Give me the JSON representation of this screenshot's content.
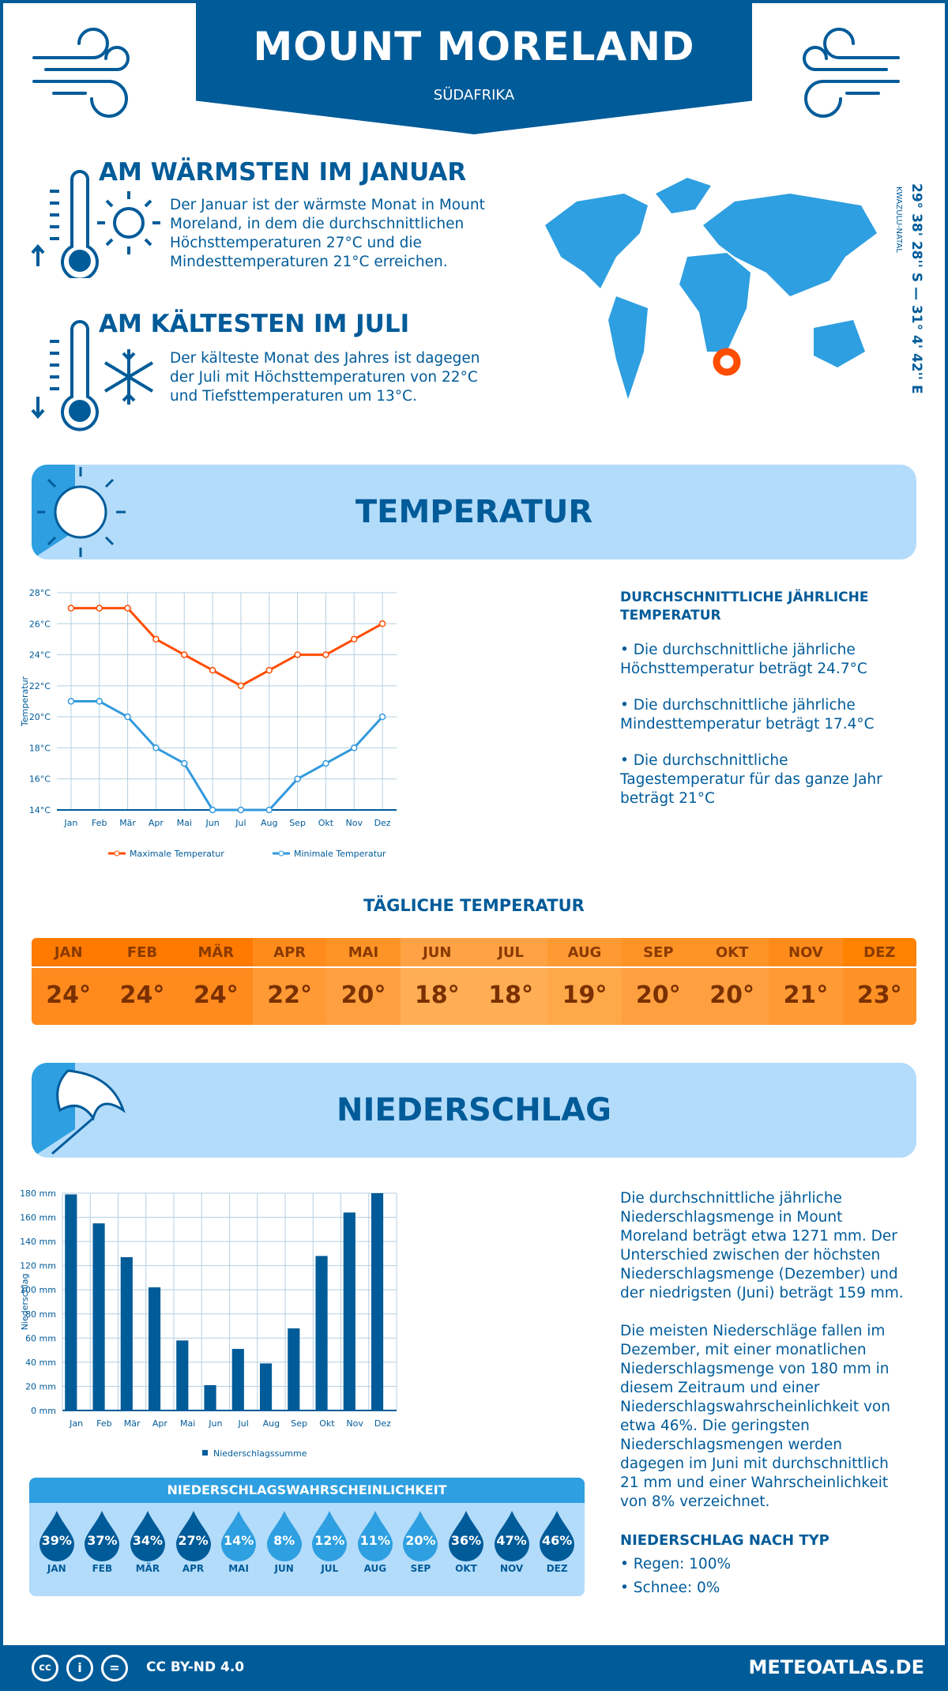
{
  "header": {
    "title": "MOUNT MORELAND",
    "subtitle": "SÜDAFRIKA"
  },
  "warm": {
    "title": "AM WÄRMSTEN IM JANUAR",
    "text": "Der Januar ist der wärmste Monat in Mount Moreland, in dem die durchschnittlichen Höchsttemperaturen 27°C und die Mindesttemperaturen 21°C erreichen."
  },
  "cold": {
    "title": "AM KÄLTESTEN IM JULI",
    "text": "Der kälteste Monat des Jahres ist dagegen der Juli mit Höchsttemperaturen von 22°C und Tiefsttemperaturen um 13°C."
  },
  "map": {
    "coords": "29° 38' 28'' S — 31° 4' 42'' E",
    "region": "KWAZULU-NATAL"
  },
  "temp_section": {
    "title": "TEMPERATUR",
    "side_title": "DURCHSCHNITTLICHE JÄHRLICHE TEMPERATUR",
    "bullets": [
      "• Die durchschnittliche jährliche Höchsttemperatur beträgt 24.7°C",
      "• Die durchschnittliche jährliche Mindesttemperatur beträgt 17.4°C",
      "• Die durchschnittliche Tagestemperatur für das ganze Jahr beträgt 21°C"
    ]
  },
  "chart_data": [
    {
      "type": "line",
      "ylabel": "Temperatur",
      "ylim": [
        14,
        28
      ],
      "yticks": [
        "14°C",
        "16°C",
        "18°C",
        "20°C",
        "22°C",
        "24°C",
        "26°C",
        "28°C"
      ],
      "categories": [
        "Jan",
        "Feb",
        "Mär",
        "Apr",
        "Mai",
        "Jun",
        "Jul",
        "Aug",
        "Sep",
        "Okt",
        "Nov",
        "Dez"
      ],
      "grid": true,
      "legend": "bottom",
      "series": [
        {
          "name": "Maximale Temperatur",
          "color": "#ff4d00",
          "values": [
            27,
            27,
            27,
            25,
            24,
            23,
            22,
            23,
            24,
            24,
            25,
            26
          ]
        },
        {
          "name": "Minimale Temperatur",
          "color": "#3399dd",
          "values": [
            21,
            21,
            20,
            18,
            17,
            14,
            14,
            14,
            16,
            17,
            18,
            20
          ]
        }
      ]
    },
    {
      "type": "bar",
      "ylabel": "Niederschlag",
      "ylim": [
        0,
        180
      ],
      "yticks": [
        "0 mm",
        "20 mm",
        "40 mm",
        "60 mm",
        "80 mm",
        "100 mm",
        "120 mm",
        "140 mm",
        "160 mm",
        "180 mm"
      ],
      "categories": [
        "Jan",
        "Feb",
        "Mär",
        "Apr",
        "Mai",
        "Jun",
        "Jul",
        "Aug",
        "Sep",
        "Okt",
        "Nov",
        "Dez"
      ],
      "grid": true,
      "legend": "bottom",
      "series": [
        {
          "name": "Niederschlagssumme",
          "color": "#005b99",
          "values": [
            179,
            155,
            127,
            102,
            58,
            21,
            51,
            39,
            68,
            128,
            164,
            180
          ]
        }
      ]
    }
  ],
  "daily": {
    "title": "TÄGLICHE TEMPERATUR",
    "months": [
      {
        "m": "JAN",
        "v": "24°",
        "c": "#ff7a00",
        "h": "#ff8a1e"
      },
      {
        "m": "FEB",
        "v": "24°",
        "c": "#ff7a00",
        "h": "#ff8a1e"
      },
      {
        "m": "MÄR",
        "v": "24°",
        "c": "#ff7a00",
        "h": "#ff8a1e"
      },
      {
        "m": "APR",
        "v": "22°",
        "c": "#ff8c1a",
        "h": "#ff9a35"
      },
      {
        "m": "MAI",
        "v": "20°",
        "c": "#ff9426",
        "h": "#ffa040"
      },
      {
        "m": "JUN",
        "v": "18°",
        "c": "#ffa245",
        "h": "#ffae55"
      },
      {
        "m": "JUL",
        "v": "18°",
        "c": "#ffa245",
        "h": "#ffae55"
      },
      {
        "m": "AUG",
        "v": "19°",
        "c": "#ff9a33",
        "h": "#ffa84a"
      },
      {
        "m": "SEP",
        "v": "20°",
        "c": "#ff9426",
        "h": "#ffa040"
      },
      {
        "m": "OKT",
        "v": "20°",
        "c": "#ff9426",
        "h": "#ffa040"
      },
      {
        "m": "NOV",
        "v": "21°",
        "c": "#ff8c1a",
        "h": "#ff9a35"
      },
      {
        "m": "DEZ",
        "v": "23°",
        "c": "#ff8200",
        "h": "#ff9226"
      }
    ]
  },
  "precip_section": {
    "title": "NIEDERSCHLAG",
    "p1": "Die durchschnittliche jährliche Niederschlagsmenge in Mount Moreland beträgt etwa 1271 mm. Der Unterschied zwischen der höchsten Niederschlagsmenge (Dezember) und der niedrigsten (Juni) beträgt 159 mm.",
    "p2": "Die meisten Niederschläge fallen im Dezember, mit einer monatlichen Niederschlagsmenge von 180 mm in diesem Zeitraum und einer Niederschlagswahrscheinlichkeit von etwa 46%. Die geringsten Niederschlagsmengen werden dagegen im Juni mit durchschnittlich 21 mm und einer Wahrscheinlichkeit von 8% verzeichnet.",
    "type_title": "NIEDERSCHLAG NACH TYP",
    "types": [
      "• Regen: 100%",
      "• Schnee: 0%"
    ]
  },
  "probability": {
    "title": "NIEDERSCHLAGSWAHRSCHEINLICHKEIT",
    "items": [
      {
        "m": "JAN",
        "v": "39%"
      },
      {
        "m": "FEB",
        "v": "37%"
      },
      {
        "m": "MÄR",
        "v": "34%"
      },
      {
        "m": "APR",
        "v": "27%"
      },
      {
        "m": "MAI",
        "v": "14%"
      },
      {
        "m": "JUN",
        "v": "8%"
      },
      {
        "m": "JUL",
        "v": "12%"
      },
      {
        "m": "AUG",
        "v": "11%"
      },
      {
        "m": "SEP",
        "v": "20%"
      },
      {
        "m": "OKT",
        "v": "36%"
      },
      {
        "m": "NOV",
        "v": "47%"
      },
      {
        "m": "DEZ",
        "v": "46%"
      }
    ]
  },
  "footer": {
    "license": "CC BY-ND 4.0",
    "site": "METEOATLAS.DE"
  }
}
